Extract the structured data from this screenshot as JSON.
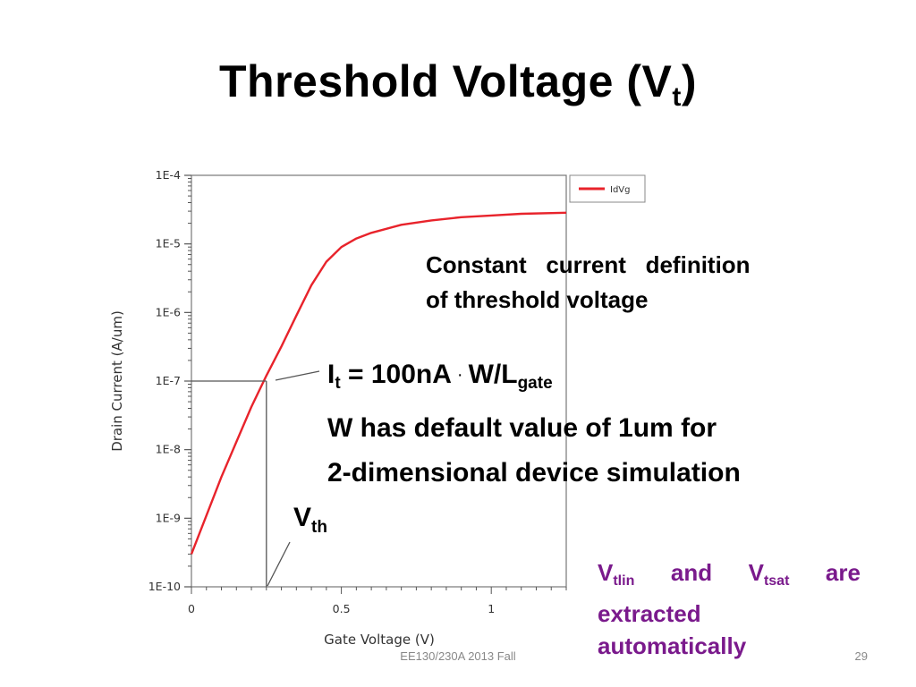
{
  "title": {
    "main": "Threshold Voltage (V",
    "sub": "t",
    "close": ")"
  },
  "note1": {
    "line1": [
      "Constant",
      "current",
      "definition"
    ],
    "line2": "of threshold voltage"
  },
  "formula": {
    "it_main": "I",
    "it_sub": "t",
    "expr": " = 100nA",
    "dot": "·",
    "wl": "W/L",
    "wl_sub": "gate",
    "line2": "W has default value of 1um for",
    "line3": "2-dimensional device simulation"
  },
  "vth": {
    "main": "V",
    "sub": "th"
  },
  "note2": {
    "v1": "V",
    "v1_sub": "tlin",
    "and": "and",
    "v2": "V",
    "v2_sub": "tsat",
    "are": "are",
    "line2": "extracted",
    "line3": "automatically"
  },
  "footer": {
    "course": "EE130/230A 2013 Fall",
    "page": "29"
  },
  "colors": {
    "curve": "#e8232b",
    "note2": "#7a1a8c",
    "axis": "#555555"
  },
  "chart_data": {
    "type": "line",
    "xlabel": "Gate Voltage (V)",
    "ylabel": "Drain Current (A/um)",
    "yscale": "log",
    "xlim": [
      0,
      1.25
    ],
    "ylim": [
      1e-10,
      0.0001
    ],
    "x_ticks": [
      "0",
      "0.5",
      "1"
    ],
    "y_ticks": [
      "1E-4",
      "1E-5",
      "1E-6",
      "1E-7",
      "1E-8",
      "1E-9",
      "1E-10"
    ],
    "legend": {
      "placement": "top-right",
      "entries": [
        "IdVg"
      ]
    },
    "series": [
      {
        "name": "IdVg",
        "x": [
          0,
          0.05,
          0.1,
          0.15,
          0.2,
          0.25,
          0.3,
          0.35,
          0.4,
          0.45,
          0.5,
          0.55,
          0.6,
          0.7,
          0.8,
          0.9,
          1.0,
          1.1,
          1.25
        ],
        "y": [
          3e-10,
          1.1e-09,
          4e-09,
          1.3e-08,
          4.2e-08,
          1.2e-07,
          3.2e-07,
          9e-07,
          2.5e-06,
          5.5e-06,
          9e-06,
          1.2e-05,
          1.45e-05,
          1.9e-05,
          2.2e-05,
          2.45e-05,
          2.6e-05,
          2.75e-05,
          2.85e-05
        ]
      }
    ],
    "annotation": {
      "vth": 0.25,
      "it": 1e-07
    }
  }
}
